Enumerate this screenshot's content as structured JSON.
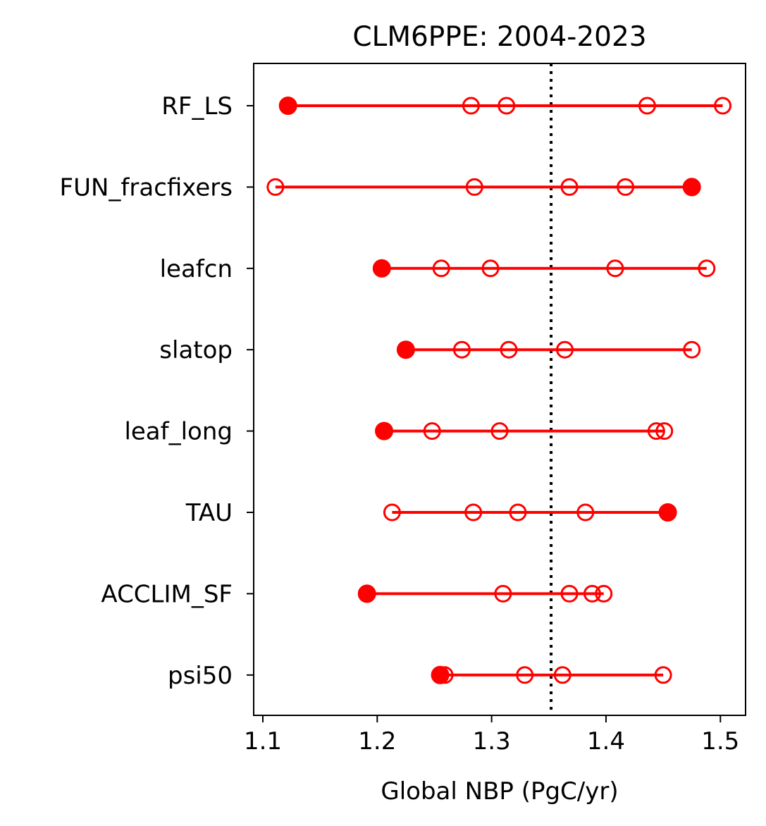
{
  "chart_data": {
    "type": "scatter",
    "title": "CLM6PPE: 2004-2023",
    "xlabel": "Global NBP (PgC/yr)",
    "ylabel": "",
    "xlim": [
      1.092,
      1.522
    ],
    "xticks": [
      1.1,
      1.2,
      1.3,
      1.4,
      1.5
    ],
    "xtick_labels": [
      "1.1",
      "1.2",
      "1.3",
      "1.4",
      "1.5"
    ],
    "reference_line": {
      "x": 1.352,
      "style": "dotted",
      "color": "#000000"
    },
    "grid": false,
    "legend": "none",
    "marker_color": "#ff0000",
    "line_color": "#ff0000",
    "categories": [
      "RF_LS",
      "FUN_fracfixers",
      "leafcn",
      "slatop",
      "leaf_long",
      "TAU",
      "ACCLIM_SF",
      "psi50"
    ],
    "rows": [
      {
        "label": "RF_LS",
        "filled": 1.122,
        "open": [
          1.282,
          1.313,
          1.436,
          1.502
        ]
      },
      {
        "label": "FUN_fracfixers",
        "filled": 1.475,
        "open": [
          1.111,
          1.285,
          1.368,
          1.417
        ]
      },
      {
        "label": "leafcn",
        "filled": 1.204,
        "open": [
          1.256,
          1.299,
          1.408,
          1.488
        ]
      },
      {
        "label": "slatop",
        "filled": 1.225,
        "open": [
          1.274,
          1.315,
          1.364,
          1.475
        ]
      },
      {
        "label": "leaf_long",
        "filled": 1.206,
        "open": [
          1.248,
          1.307,
          1.444,
          1.451
        ]
      },
      {
        "label": "TAU",
        "filled": 1.454,
        "open": [
          1.213,
          1.284,
          1.323,
          1.382
        ]
      },
      {
        "label": "ACCLIM_SF",
        "filled": 1.191,
        "open": [
          1.31,
          1.368,
          1.388,
          1.398
        ]
      },
      {
        "label": "psi50",
        "filled": 1.255,
        "open": [
          1.259,
          1.329,
          1.362,
          1.45
        ]
      }
    ]
  }
}
